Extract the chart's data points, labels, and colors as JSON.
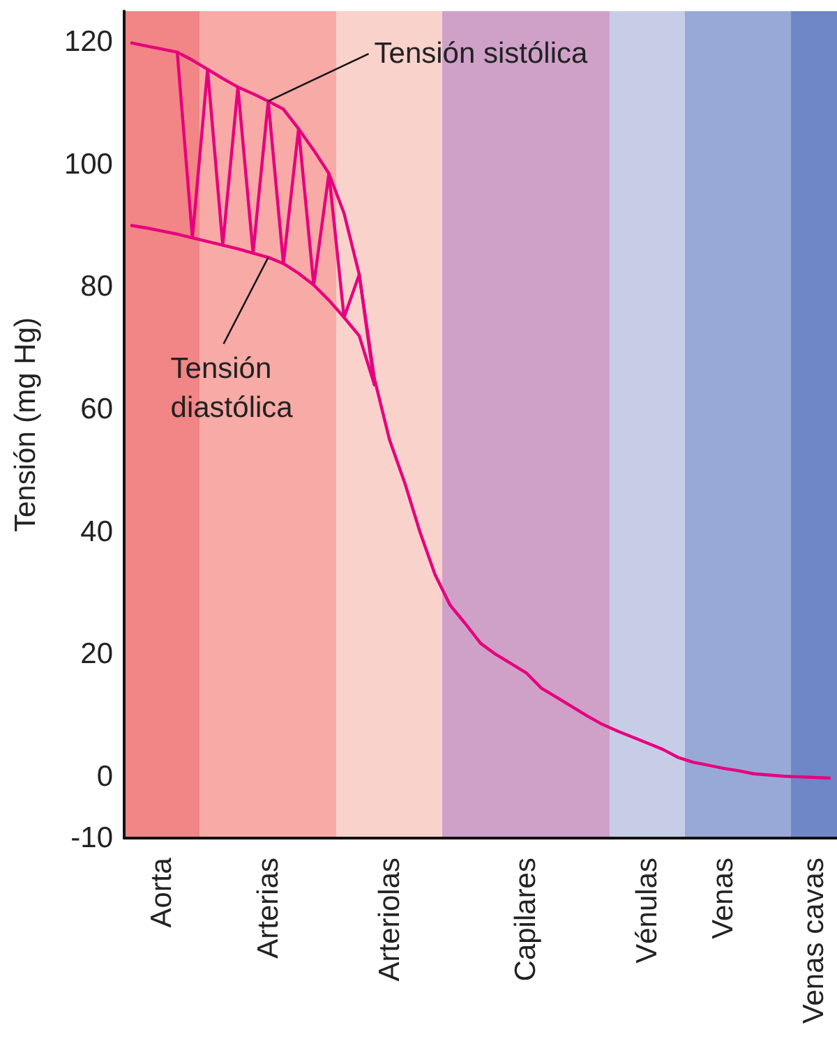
{
  "chart_data": {
    "type": "line",
    "ylabel": "Tensión (mg Hg)",
    "ylim": [
      -10,
      125
    ],
    "yticks": [
      -10,
      0,
      20,
      40,
      60,
      80,
      100,
      120
    ],
    "marker": "none",
    "line_style": "solid",
    "categories": [
      null,
      null,
      "Aorta",
      null,
      null,
      null,
      null,
      null,
      null,
      "Arterias",
      null,
      null,
      null,
      null,
      null,
      null,
      null,
      "Arteriolas",
      null,
      null,
      null,
      null,
      null,
      null,
      null,
      null,
      "Capilares",
      null,
      null,
      null,
      null,
      null,
      null,
      null,
      "Vénulas",
      null,
      null,
      null,
      null,
      "Venas",
      null,
      null,
      null,
      null,
      null,
      "Venas cavas",
      null
    ],
    "colors": [
      "#f28585",
      "#f28585",
      "#f28585",
      "#f28585",
      "#f28585",
      "#f7aaa6",
      "#f7aaa6",
      "#f7aaa6",
      "#f7aaa6",
      "#f7aaa6",
      "#f7aaa6",
      "#f7aaa6",
      "#f7aaa6",
      "#f7aaa6",
      "#f9d2cc",
      "#f9d2cc",
      "#f9d2cc",
      "#f9d2cc",
      "#f9d2cc",
      "#f9d2cc",
      "#f9d2cc",
      "#cfa1c9",
      "#cfa1c9",
      "#cfa1c9",
      "#cfa1c9",
      "#cfa1c9",
      "#cfa1c9",
      "#cfa1c9",
      "#cfa1c9",
      "#cfa1c9",
      "#cfa1c9",
      "#cfa1c9",
      "#c8cde7",
      "#c8cde7",
      "#c8cde7",
      "#c8cde7",
      "#c8cde7",
      "#99a9d7",
      "#99a9d7",
      "#99a9d7",
      "#99a9d7",
      "#99a9d7",
      "#99a9d7",
      "#99a9d7",
      "#6f87c7",
      "#6f87c7",
      "#6f87c7"
    ],
    "series": [
      {
        "color": "#e6007e",
        "values": [
          119.8,
          119.3,
          118.8,
          118.3,
          117,
          115.5,
          114,
          112.6,
          111.5,
          110.3,
          109,
          105.8,
          102.3,
          98.5,
          92,
          82,
          65,
          55,
          48,
          40,
          33,
          28,
          25,
          21.8,
          20,
          18.5,
          17,
          14.5,
          13,
          11.5,
          10,
          8.6,
          7.5,
          6.5,
          5.5,
          4.5,
          3.2,
          2.4,
          1.9,
          1.4,
          1,
          0.5,
          0.3,
          0.1,
          0,
          -0.1,
          -0.2
        ]
      },
      {
        "color": "#e6007e",
        "values": [
          90,
          89.6,
          89.1,
          88.6,
          88,
          87.4,
          86.8,
          86.2,
          85.5,
          84.8,
          83.8,
          82.2,
          80.3,
          77.8,
          75,
          72,
          64,
          null,
          null,
          null,
          null,
          null,
          null,
          null,
          null,
          null,
          null,
          null,
          null,
          null,
          null,
          null,
          null,
          null,
          null,
          null,
          null,
          null,
          null,
          null,
          null,
          null,
          null,
          null,
          null,
          null,
          null
        ]
      },
      {
        "color": "#e6007e",
        "values": [
          null,
          null,
          null,
          118.3,
          88,
          115.5,
          86.8,
          112.6,
          85.5,
          110.3,
          83.8,
          105.8,
          80.3,
          98.5,
          75,
          82,
          64,
          null,
          null,
          null,
          null,
          null,
          null,
          null,
          null,
          null,
          null,
          null,
          null,
          null,
          null,
          null,
          null,
          null,
          null,
          null,
          null,
          null,
          null,
          null,
          null,
          null,
          null,
          null,
          null,
          null,
          null
        ]
      }
    ],
    "annotations": [
      {
        "text": "Tensión sistólica",
        "x": "Arterias",
        "y": 110.3
      },
      {
        "text": "Tensión\ndiastólica",
        "x": "Arterias",
        "y": 84.8
      }
    ]
  }
}
